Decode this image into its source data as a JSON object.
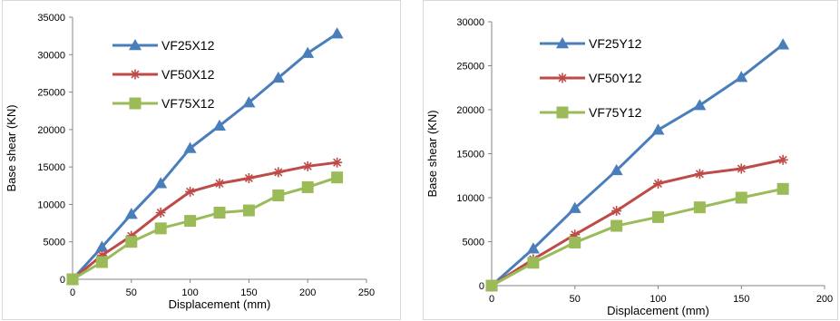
{
  "chart_data": [
    {
      "type": "line",
      "title": "",
      "xlabel": "Displacement (mm)",
      "ylabel": "Base shear (KN)",
      "xlim": [
        0,
        250
      ],
      "ylim": [
        0,
        35000
      ],
      "xticks": [
        0,
        50,
        100,
        150,
        200,
        250
      ],
      "yticks": [
        0,
        5000,
        10000,
        15000,
        20000,
        25000,
        30000,
        35000
      ],
      "grid": false,
      "legend_position": "top-left",
      "x": [
        0,
        25,
        50,
        75,
        100,
        125,
        150,
        175,
        200,
        225
      ],
      "series": [
        {
          "name": "VF25X12",
          "color": "#4a7ebb",
          "marker": "triangle",
          "values": [
            0,
            4300,
            8700,
            12800,
            17500,
            20500,
            23600,
            26900,
            30200,
            32800
          ]
        },
        {
          "name": "VF50X12",
          "color": "#be4b48",
          "marker": "star",
          "values": [
            0,
            3200,
            5800,
            8900,
            11700,
            12800,
            13500,
            14300,
            15100,
            15600
          ]
        },
        {
          "name": "VF75X12",
          "color": "#9bbb59",
          "marker": "square",
          "values": [
            0,
            2300,
            5000,
            6800,
            7800,
            8900,
            9200,
            11200,
            12300,
            13600
          ]
        }
      ]
    },
    {
      "type": "line",
      "title": "",
      "xlabel": "Displacement (mm)",
      "ylabel": "Base shear (KN)",
      "xlim": [
        0,
        200
      ],
      "ylim": [
        0,
        30000
      ],
      "xticks": [
        0,
        50,
        100,
        150,
        200
      ],
      "yticks": [
        0,
        5000,
        10000,
        15000,
        20000,
        25000,
        30000
      ],
      "grid": false,
      "legend_position": "top-left",
      "x": [
        0,
        25,
        50,
        75,
        100,
        125,
        150,
        175
      ],
      "series": [
        {
          "name": "VF25Y12",
          "color": "#4a7ebb",
          "marker": "triangle",
          "values": [
            0,
            4200,
            8800,
            13100,
            17700,
            20500,
            23700,
            27400
          ]
        },
        {
          "name": "VF50Y12",
          "color": "#be4b48",
          "marker": "star",
          "values": [
            0,
            3000,
            5800,
            8500,
            11600,
            12700,
            13300,
            14300
          ]
        },
        {
          "name": "VF75Y12",
          "color": "#9bbb59",
          "marker": "square",
          "values": [
            0,
            2600,
            4900,
            6800,
            7800,
            8900,
            10000,
            11000
          ]
        }
      ]
    }
  ]
}
